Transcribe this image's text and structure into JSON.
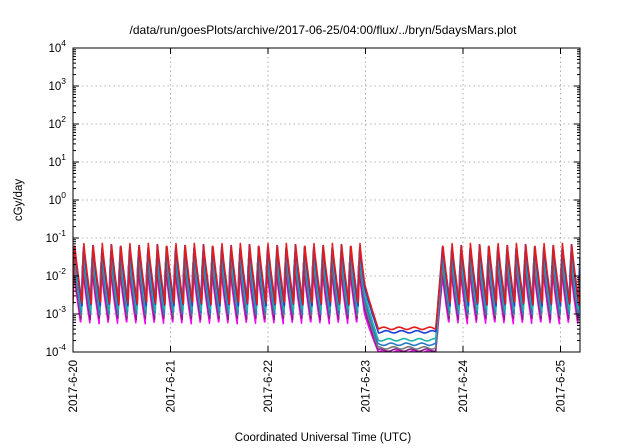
{
  "chart_data": {
    "type": "line",
    "title": "/data/run/goesPlots/archive/2017-06-25/04:00/flux/../bryn/5daysMars.plot",
    "xlabel": "Coordinated Universal Time (UTC)",
    "ylabel": "cGy/day",
    "y_scale": "log",
    "ylim": [
      0.0001,
      10000
    ],
    "xlim_days": [
      0,
      5.2
    ],
    "grid": true,
    "x_ticks": [
      {
        "label": "2017-6-20",
        "day": 0
      },
      {
        "label": "2017-6-21",
        "day": 1
      },
      {
        "label": "2017-6-22",
        "day": 2
      },
      {
        "label": "2017-6-23",
        "day": 3
      },
      {
        "label": "2017-6-24",
        "day": 4
      },
      {
        "label": "2017-6-25",
        "day": 5
      }
    ],
    "y_ticks": [
      {
        "base": "10",
        "exp": "-4",
        "value": 0.0001
      },
      {
        "base": "10",
        "exp": "-3",
        "value": 0.001
      },
      {
        "base": "10",
        "exp": "-2",
        "value": 0.01
      },
      {
        "base": "10",
        "exp": "-1",
        "value": 0.1
      },
      {
        "base": "10",
        "exp": "0",
        "value": 1
      },
      {
        "base": "10",
        "exp": "1",
        "value": 10
      },
      {
        "base": "10",
        "exp": "2",
        "value": 100
      },
      {
        "base": "10",
        "exp": "3",
        "value": 1000
      },
      {
        "base": "10",
        "exp": "4",
        "value": 10000
      }
    ],
    "pattern": {
      "period_days": 0.0944,
      "rise_fraction": 0.18,
      "quiet_start_day": 2.99,
      "drop_end_day": 3.13,
      "quiet_end_day": 3.72,
      "recover_end_day": 3.79
    },
    "series": [
      {
        "color": "#e41a1c",
        "peak": 0.075,
        "trough": 0.0018,
        "quiet": 0.00042
      },
      {
        "color": "#1f3fd6",
        "peak": 0.068,
        "trough": 0.0016,
        "quiet": 0.00034
      },
      {
        "color": "#1fb5a8",
        "peak": 0.058,
        "trough": 0.0012,
        "quiet": 0.00021
      },
      {
        "color": "#2a7ac9",
        "peak": 0.045,
        "trough": 0.00095,
        "quiet": 0.00016
      },
      {
        "color": "#7a7a7a",
        "peak": 0.032,
        "trough": 0.0009,
        "quiet": 0.000128
      },
      {
        "color": "#8b1a8b",
        "peak": 0.024,
        "trough": 0.0007,
        "quiet": 0.000112
      },
      {
        "color": "#ee10ee",
        "peak": 0.02,
        "trough": 0.00055,
        "quiet": 0.000102
      }
    ]
  }
}
